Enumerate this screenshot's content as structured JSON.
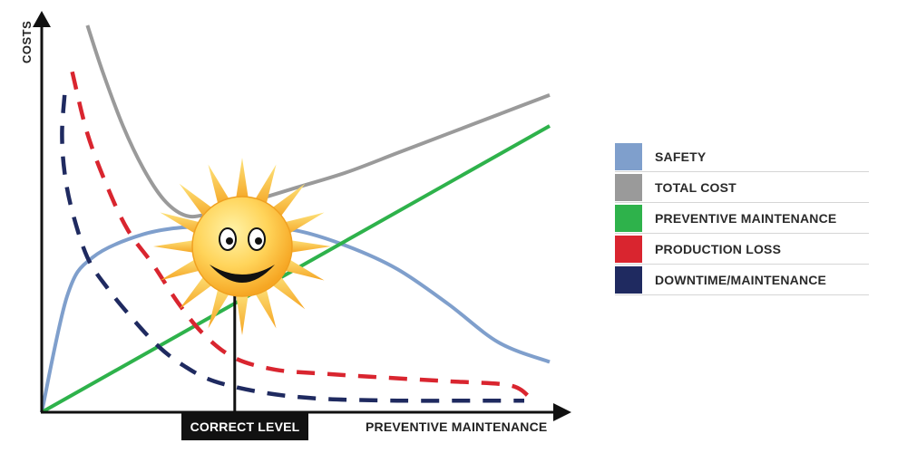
{
  "chart_data": {
    "type": "line",
    "ylabel": "COSTS",
    "xlabel": "PREVENTIVE MAINTENANCE",
    "xlim": [
      0,
      100
    ],
    "ylim": [
      0,
      100
    ],
    "grid": false,
    "legend_position": "right",
    "marker": {
      "label": "CORRECT LEVEL",
      "x": 38
    },
    "series": [
      {
        "name": "SAFETY",
        "color": "#7f9fcc",
        "style": "solid",
        "points": [
          [
            0,
            0
          ],
          [
            5,
            30
          ],
          [
            10,
            40
          ],
          [
            20,
            46
          ],
          [
            30,
            48
          ],
          [
            40,
            48
          ],
          [
            50,
            47
          ],
          [
            60,
            43
          ],
          [
            70,
            37
          ],
          [
            80,
            28
          ],
          [
            90,
            18
          ],
          [
            100,
            13
          ]
        ]
      },
      {
        "name": "TOTAL COST",
        "color": "#9a9a9a",
        "style": "solid",
        "points": [
          [
            9,
            100
          ],
          [
            12,
            88
          ],
          [
            16,
            74
          ],
          [
            20,
            63
          ],
          [
            24,
            55
          ],
          [
            28,
            51
          ],
          [
            32,
            51
          ],
          [
            40,
            54
          ],
          [
            50,
            58
          ],
          [
            60,
            62
          ],
          [
            70,
            67
          ],
          [
            80,
            72
          ],
          [
            90,
            77
          ],
          [
            100,
            82
          ]
        ]
      },
      {
        "name": "PREVENTIVE MAINTENANCE",
        "color": "#2eb24b",
        "style": "solid",
        "points": [
          [
            0,
            0
          ],
          [
            100,
            74
          ]
        ]
      },
      {
        "name": "PRODUCTION LOSS",
        "color": "#d9252f",
        "style": "dashed",
        "points": [
          [
            6,
            88
          ],
          [
            9,
            72
          ],
          [
            13,
            58
          ],
          [
            17,
            47
          ],
          [
            22,
            38
          ],
          [
            27,
            28
          ],
          [
            32,
            20
          ],
          [
            38,
            14
          ],
          [
            46,
            11
          ],
          [
            55,
            10
          ],
          [
            67,
            9
          ],
          [
            80,
            8
          ],
          [
            92,
            7
          ],
          [
            96,
            4
          ]
        ]
      },
      {
        "name": "DOWNTIME/MAINTENANCE",
        "color": "#1f2a60",
        "style": "dashed",
        "points": [
          [
            4.5,
            82
          ],
          [
            4,
            72
          ],
          [
            4.5,
            62
          ],
          [
            6,
            52
          ],
          [
            9,
            40
          ],
          [
            13,
            32
          ],
          [
            18,
            24
          ],
          [
            23,
            17
          ],
          [
            28,
            12
          ],
          [
            34,
            8
          ],
          [
            44,
            5
          ],
          [
            55,
            3.5
          ],
          [
            70,
            3
          ],
          [
            85,
            3
          ],
          [
            95,
            3
          ]
        ]
      }
    ]
  }
}
